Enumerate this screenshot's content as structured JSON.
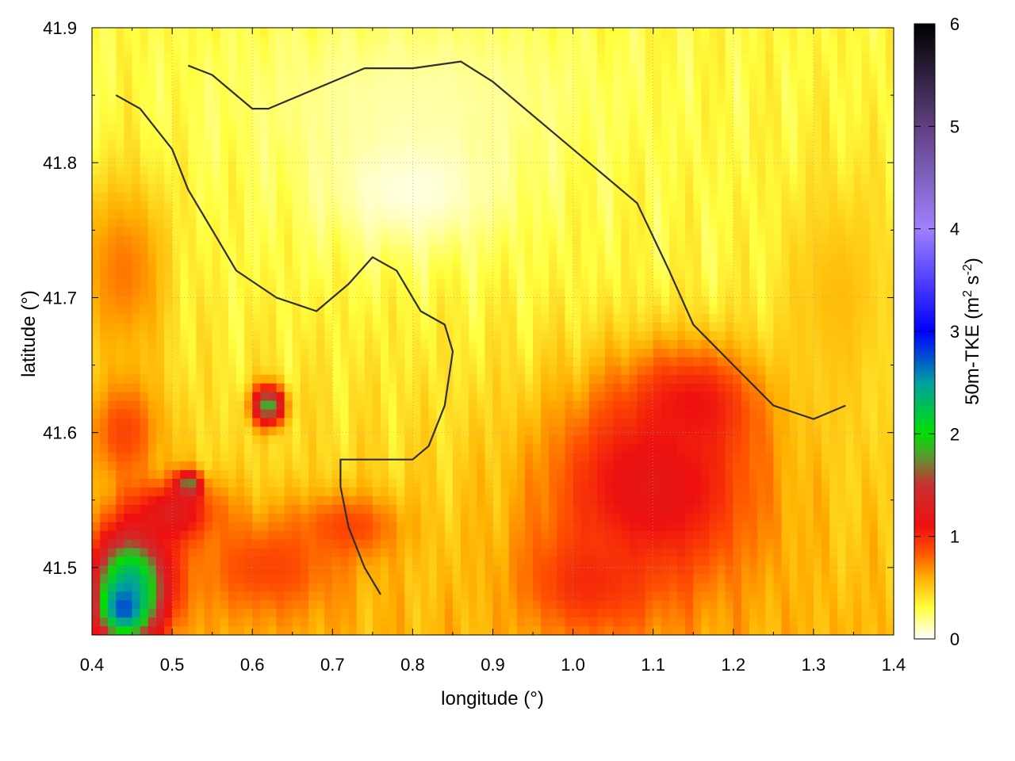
{
  "chart_data": {
    "type": "heatmap",
    "xlabel": "longitude (°)",
    "ylabel": "latitude (°)",
    "xlim": [
      0.4,
      1.4
    ],
    "ylim": [
      41.45,
      41.9
    ],
    "x_ticks": [
      "0.4",
      "0.5",
      "0.6",
      "0.7",
      "0.8",
      "0.9",
      "1.0",
      "1.1",
      "1.2",
      "1.3",
      "1.4"
    ],
    "y_ticks": [
      "41.5",
      "41.6",
      "41.7",
      "41.8",
      "41.9"
    ],
    "grid": true,
    "colorbar": {
      "label": "50m-TKE (m² s⁻²)",
      "label_main": "50m-TKE (m",
      "label_sup1": "2",
      "label_mid": " s",
      "label_sup2": "-2",
      "label_end": ")",
      "range": [
        0,
        6
      ],
      "ticks": [
        "0",
        "1",
        "2",
        "3",
        "4",
        "5",
        "6"
      ],
      "palette": [
        {
          "value": 0.0,
          "color": "#ffffff"
        },
        {
          "value": 0.3,
          "color": "#ffff40"
        },
        {
          "value": 0.6,
          "color": "#ffb000"
        },
        {
          "value": 0.85,
          "color": "#ff5000"
        },
        {
          "value": 1.1,
          "color": "#ee1010"
        },
        {
          "value": 1.5,
          "color": "#c83030"
        },
        {
          "value": 1.8,
          "color": "#50a030"
        },
        {
          "value": 2.0,
          "color": "#00e000"
        },
        {
          "value": 2.5,
          "color": "#00a0a0"
        },
        {
          "value": 3.0,
          "color": "#0000ff"
        },
        {
          "value": 4.0,
          "color": "#a080ff"
        },
        {
          "value": 5.0,
          "color": "#604080"
        },
        {
          "value": 6.0,
          "color": "#000000"
        }
      ]
    },
    "field_description_blobs": [
      {
        "lon": 1.1,
        "lat": 41.56,
        "rlon": 0.17,
        "rlat": 0.1,
        "value": 1.2
      },
      {
        "lon": 1.15,
        "lat": 41.62,
        "rlon": 0.1,
        "rlat": 0.05,
        "value": 1.1
      },
      {
        "lon": 1.02,
        "lat": 41.49,
        "rlon": 0.1,
        "rlat": 0.05,
        "value": 1.0
      },
      {
        "lon": 0.45,
        "lat": 41.49,
        "rlon": 0.06,
        "rlat": 0.05,
        "value": 2.4
      },
      {
        "lon": 0.44,
        "lat": 41.47,
        "rlon": 0.035,
        "rlat": 0.025,
        "value": 2.8
      },
      {
        "lon": 0.62,
        "lat": 41.62,
        "rlon": 0.025,
        "rlat": 0.018,
        "value": 1.9
      },
      {
        "lon": 0.52,
        "lat": 41.56,
        "rlon": 0.02,
        "rlat": 0.012,
        "value": 2.2
      },
      {
        "lon": 0.5,
        "lat": 41.54,
        "rlon": 0.07,
        "rlat": 0.03,
        "value": 1.3
      },
      {
        "lon": 0.62,
        "lat": 41.5,
        "rlon": 0.12,
        "rlat": 0.05,
        "value": 0.9
      },
      {
        "lon": 0.72,
        "lat": 41.53,
        "rlon": 0.08,
        "rlat": 0.03,
        "value": 0.9
      },
      {
        "lon": 0.44,
        "lat": 41.72,
        "rlon": 0.07,
        "rlat": 0.09,
        "value": 0.75
      },
      {
        "lon": 0.44,
        "lat": 41.6,
        "rlon": 0.06,
        "rlat": 0.05,
        "value": 0.9
      },
      {
        "lon": 1.33,
        "lat": 41.7,
        "rlon": 0.09,
        "rlat": 0.12,
        "value": 0.55
      },
      {
        "lon": 0.8,
        "lat": 41.85,
        "rlon": 0.3,
        "rlat": 0.08,
        "value": 0.15
      },
      {
        "lon": 0.8,
        "lat": 41.78,
        "rlon": 0.15,
        "rlat": 0.06,
        "value": 0.05
      }
    ],
    "contours": [
      [
        [
          0.52,
          41.872
        ],
        [
          0.55,
          41.865
        ],
        [
          0.6,
          41.84
        ],
        [
          0.62,
          41.84
        ],
        [
          0.7,
          41.86
        ],
        [
          0.74,
          41.87
        ],
        [
          0.8,
          41.87
        ],
        [
          0.86,
          41.875
        ],
        [
          0.9,
          41.86
        ],
        [
          0.94,
          41.84
        ],
        [
          0.98,
          41.82
        ],
        [
          1.02,
          41.8
        ],
        [
          1.08,
          41.77
        ],
        [
          1.12,
          41.72
        ],
        [
          1.15,
          41.68
        ],
        [
          1.2,
          41.65
        ],
        [
          1.25,
          41.62
        ],
        [
          1.3,
          41.61
        ],
        [
          1.34,
          41.62
        ]
      ],
      [
        [
          0.43,
          41.85
        ],
        [
          0.46,
          41.84
        ],
        [
          0.5,
          41.81
        ],
        [
          0.52,
          41.78
        ],
        [
          0.55,
          41.75
        ],
        [
          0.58,
          41.72
        ],
        [
          0.63,
          41.7
        ],
        [
          0.68,
          41.69
        ],
        [
          0.72,
          41.71
        ],
        [
          0.75,
          41.73
        ],
        [
          0.78,
          41.72
        ],
        [
          0.81,
          41.69
        ],
        [
          0.84,
          41.68
        ],
        [
          0.85,
          41.66
        ],
        [
          0.84,
          41.62
        ],
        [
          0.82,
          41.59
        ],
        [
          0.8,
          41.58
        ],
        [
          0.77,
          41.58
        ],
        [
          0.74,
          41.58
        ],
        [
          0.71,
          41.58
        ],
        [
          0.71,
          41.56
        ],
        [
          0.72,
          41.53
        ],
        [
          0.74,
          41.5
        ],
        [
          0.76,
          41.48
        ]
      ]
    ]
  }
}
